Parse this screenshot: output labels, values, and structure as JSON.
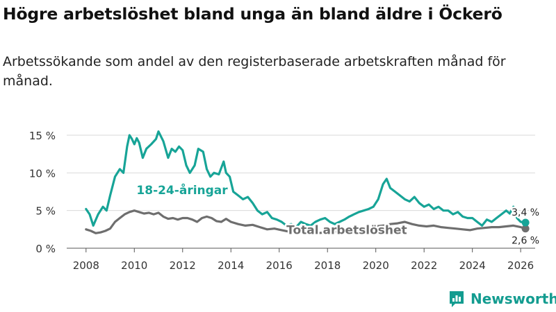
{
  "title": "Högre arbetslöshet bland unga än bland äldre i Öckerö",
  "subtitle": "Arbetssökande som andel av den registerbaserade arbetskraften månad för månad.",
  "brand": "Newsworthy",
  "colors": {
    "youth": "#17a497",
    "total": "#6e6e6e",
    "brand": "#139c90"
  },
  "chart_data": {
    "type": "line",
    "title": "Högre arbetslöshet bland unga än bland äldre i Öckerö",
    "xlabel": "",
    "ylabel": "",
    "xlim": [
      2007.2,
      2026.6
    ],
    "ylim": [
      0,
      15
    ],
    "x_ticks": [
      2008,
      2010,
      2012,
      2014,
      2016,
      2018,
      2020,
      2022,
      2024,
      2026
    ],
    "x_tick_labels": [
      "2008",
      "2010",
      "2012",
      "2014",
      "2016",
      "2018",
      "2020",
      "2022",
      "2024",
      "2026"
    ],
    "y_ticks": [
      0,
      5,
      10,
      15
    ],
    "y_tick_labels": [
      "0 %",
      "5 %",
      "10 %",
      "15 %"
    ],
    "series": [
      {
        "name": "18-24-åringar",
        "label_text": "18-24-åringar",
        "end_label": "3,4 %",
        "x": [
          2008.0,
          2008.15,
          2008.3,
          2008.5,
          2008.7,
          2008.85,
          2009.0,
          2009.2,
          2009.4,
          2009.55,
          2009.7,
          2009.8,
          2009.9,
          2010.0,
          2010.1,
          2010.2,
          2010.35,
          2010.5,
          2010.7,
          2010.9,
          2011.0,
          2011.2,
          2011.4,
          2011.55,
          2011.7,
          2011.85,
          2012.0,
          2012.15,
          2012.3,
          2012.5,
          2012.65,
          2012.85,
          2013.0,
          2013.15,
          2013.3,
          2013.5,
          2013.7,
          2013.8,
          2013.95,
          2014.1,
          2014.3,
          2014.5,
          2014.7,
          2014.9,
          2015.1,
          2015.3,
          2015.5,
          2015.7,
          2015.9,
          2016.1,
          2016.3,
          2016.5,
          2016.7,
          2016.9,
          2017.1,
          2017.3,
          2017.5,
          2017.7,
          2017.9,
          2018.1,
          2018.3,
          2018.5,
          2018.7,
          2018.9,
          2019.1,
          2019.3,
          2019.5,
          2019.7,
          2019.9,
          2020.1,
          2020.3,
          2020.45,
          2020.6,
          2020.8,
          2021.0,
          2021.2,
          2021.4,
          2021.6,
          2021.8,
          2022.0,
          2022.2,
          2022.4,
          2022.6,
          2022.8,
          2023.0,
          2023.2,
          2023.4,
          2023.6,
          2023.8,
          2024.0,
          2024.2,
          2024.4,
          2024.6,
          2024.8,
          2025.0,
          2025.2,
          2025.4,
          2025.55,
          2025.7,
          2025.85,
          2026.0,
          2026.2
        ],
        "values": [
          5.2,
          4.5,
          3.0,
          4.5,
          5.5,
          5.0,
          7.0,
          9.5,
          10.5,
          10.0,
          13.5,
          15.0,
          14.5,
          13.8,
          14.6,
          14.0,
          12.0,
          13.2,
          13.8,
          14.5,
          15.5,
          14.2,
          12.0,
          13.2,
          12.8,
          13.5,
          13.0,
          11.0,
          10.0,
          11.0,
          13.2,
          12.8,
          10.5,
          9.5,
          10.0,
          9.8,
          11.5,
          10.0,
          9.5,
          7.5,
          7.0,
          6.5,
          6.8,
          6.0,
          5.0,
          4.5,
          4.8,
          4.0,
          3.8,
          3.5,
          3.0,
          3.2,
          2.8,
          3.5,
          3.2,
          3.0,
          3.5,
          3.8,
          4.0,
          3.5,
          3.2,
          3.5,
          3.8,
          4.2,
          4.5,
          4.8,
          5.0,
          5.2,
          5.5,
          6.5,
          8.5,
          9.2,
          8.0,
          7.5,
          7.0,
          6.5,
          6.2,
          6.8,
          6.0,
          5.5,
          5.8,
          5.2,
          5.5,
          5.0,
          5.0,
          4.5,
          4.8,
          4.2,
          4.0,
          4.0,
          3.5,
          3.0,
          3.8,
          3.5,
          4.0,
          4.5,
          5.0,
          4.6,
          5.5,
          4.0,
          3.5,
          3.4
        ]
      },
      {
        "name": "Total arbetslöshet",
        "label_text": "Total arbetslöshet",
        "end_label": "2,6 %",
        "x": [
          2008.0,
          2008.2,
          2008.4,
          2008.6,
          2008.8,
          2009.0,
          2009.2,
          2009.4,
          2009.6,
          2009.8,
          2010.0,
          2010.2,
          2010.4,
          2010.6,
          2010.8,
          2011.0,
          2011.2,
          2011.4,
          2011.6,
          2011.8,
          2012.0,
          2012.2,
          2012.4,
          2012.6,
          2012.8,
          2013.0,
          2013.2,
          2013.4,
          2013.6,
          2013.8,
          2014.0,
          2014.3,
          2014.6,
          2014.9,
          2015.2,
          2015.5,
          2015.8,
          2016.1,
          2016.4,
          2016.7,
          2017.0,
          2017.3,
          2017.6,
          2017.9,
          2018.2,
          2018.5,
          2018.8,
          2019.1,
          2019.4,
          2019.7,
          2020.0,
          2020.3,
          2020.6,
          2020.9,
          2021.2,
          2021.5,
          2021.8,
          2022.1,
          2022.4,
          2022.7,
          2023.0,
          2023.3,
          2023.6,
          2023.9,
          2024.2,
          2024.5,
          2024.8,
          2025.1,
          2025.4,
          2025.7,
          2026.0,
          2026.2
        ],
        "values": [
          2.5,
          2.3,
          2.0,
          2.1,
          2.3,
          2.6,
          3.5,
          4.0,
          4.5,
          4.8,
          5.0,
          4.8,
          4.6,
          4.7,
          4.5,
          4.7,
          4.2,
          3.9,
          4.0,
          3.8,
          4.0,
          4.0,
          3.8,
          3.5,
          4.0,
          4.2,
          4.0,
          3.6,
          3.5,
          3.9,
          3.5,
          3.2,
          3.0,
          3.1,
          2.8,
          2.5,
          2.6,
          2.4,
          2.2,
          2.2,
          2.1,
          2.0,
          2.0,
          2.1,
          2.2,
          2.2,
          2.3,
          2.4,
          2.6,
          2.8,
          2.9,
          3.0,
          3.2,
          3.3,
          3.5,
          3.2,
          3.0,
          2.9,
          3.0,
          2.8,
          2.7,
          2.6,
          2.5,
          2.4,
          2.6,
          2.7,
          2.8,
          2.8,
          2.9,
          3.0,
          2.8,
          2.6
        ]
      }
    ],
    "legend": "inline labels"
  }
}
